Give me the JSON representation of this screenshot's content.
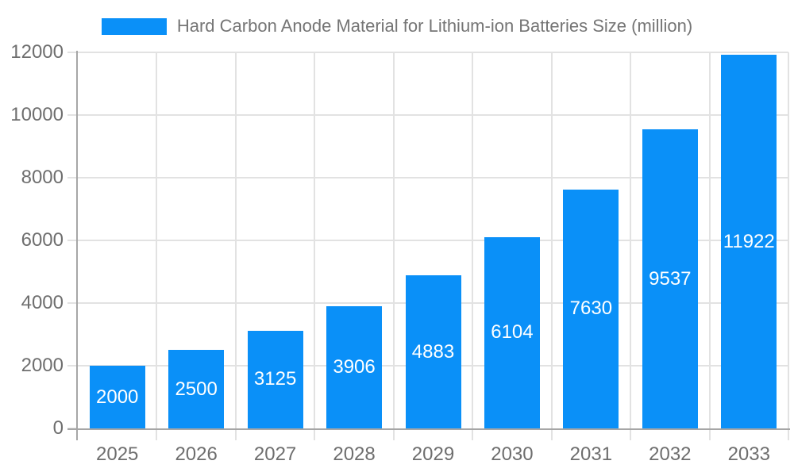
{
  "legend": {
    "label": "Hard Carbon Anode Material for Lithium-ion Batteries Size (million)"
  },
  "chart_data": {
    "type": "bar",
    "title": "Hard Carbon Anode Material for Lithium-ion Batteries Size (million)",
    "categories": [
      "2025",
      "2026",
      "2027",
      "2028",
      "2029",
      "2030",
      "2031",
      "2032",
      "2033"
    ],
    "values": [
      2000,
      2500,
      3125,
      3906,
      4883,
      6104,
      7630,
      9537,
      11922
    ],
    "yticks": [
      0,
      2000,
      4000,
      6000,
      8000,
      10000,
      12000
    ],
    "ylim": [
      0,
      12000
    ],
    "xlabel": "",
    "ylabel": "",
    "grid": true,
    "legend_position": "top",
    "value_labels": "inside-center"
  },
  "colors": {
    "bar": "#0a90f8",
    "grid": "#e2e2e2",
    "axis": "#a6a6a6",
    "tick_text": "#6e6e6e",
    "legend_text": "#757575",
    "value_label": "#ffffff",
    "background": "#ffffff"
  }
}
